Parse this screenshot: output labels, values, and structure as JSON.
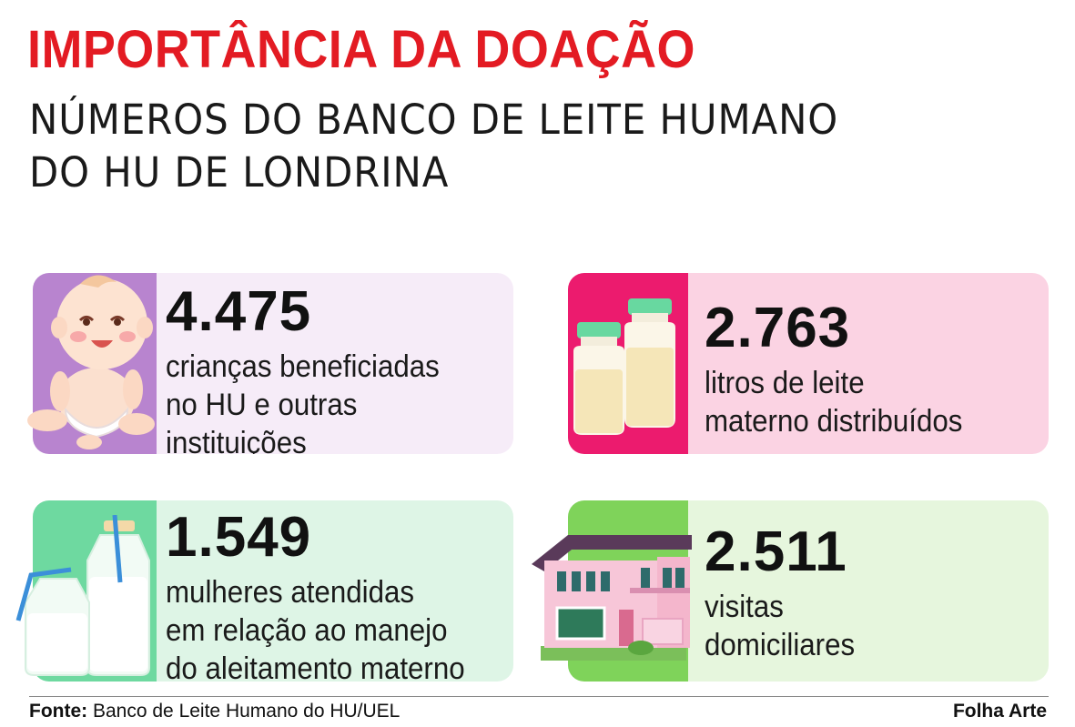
{
  "header": {
    "title": "IMPORTÂNCIA DA DOAÇÃO",
    "subtitle_line1": "NÚMEROS DO BANCO DE LEITE HUMANO",
    "subtitle_line2": "DO HU DE LONDRINA"
  },
  "cards": [
    {
      "value": "4.475",
      "lines": [
        "crianças beneficiadas",
        "no HU e outras",
        "instituições"
      ],
      "icon": "baby-icon",
      "accent": "#b884cf",
      "background": "#f6ecf8"
    },
    {
      "value": "2.763",
      "lines": [
        "litros de leite",
        "materno distribuídos"
      ],
      "icon": "milk-bottles-icon",
      "accent": "#ec1b6e",
      "background": "#fbd3e3"
    },
    {
      "value": "1.549",
      "lines": [
        "mulheres atendidas",
        "em relação ao manejo",
        "do aleitamento materno"
      ],
      "icon": "milk-jugs-icon",
      "accent": "#6ed9a0",
      "background": "#def5e6"
    },
    {
      "value": "2.511",
      "lines": [
        "visitas",
        "domiciliares"
      ],
      "icon": "house-icon",
      "accent": "#7fd35a",
      "background": "#e6f6dd"
    }
  ],
  "footer": {
    "source_label": "Fonte:",
    "source_text": "Banco de Leite Humano do HU/UEL",
    "credit": "Folha Arte"
  },
  "colors": {
    "title": "#e31b23",
    "text": "#111111"
  }
}
